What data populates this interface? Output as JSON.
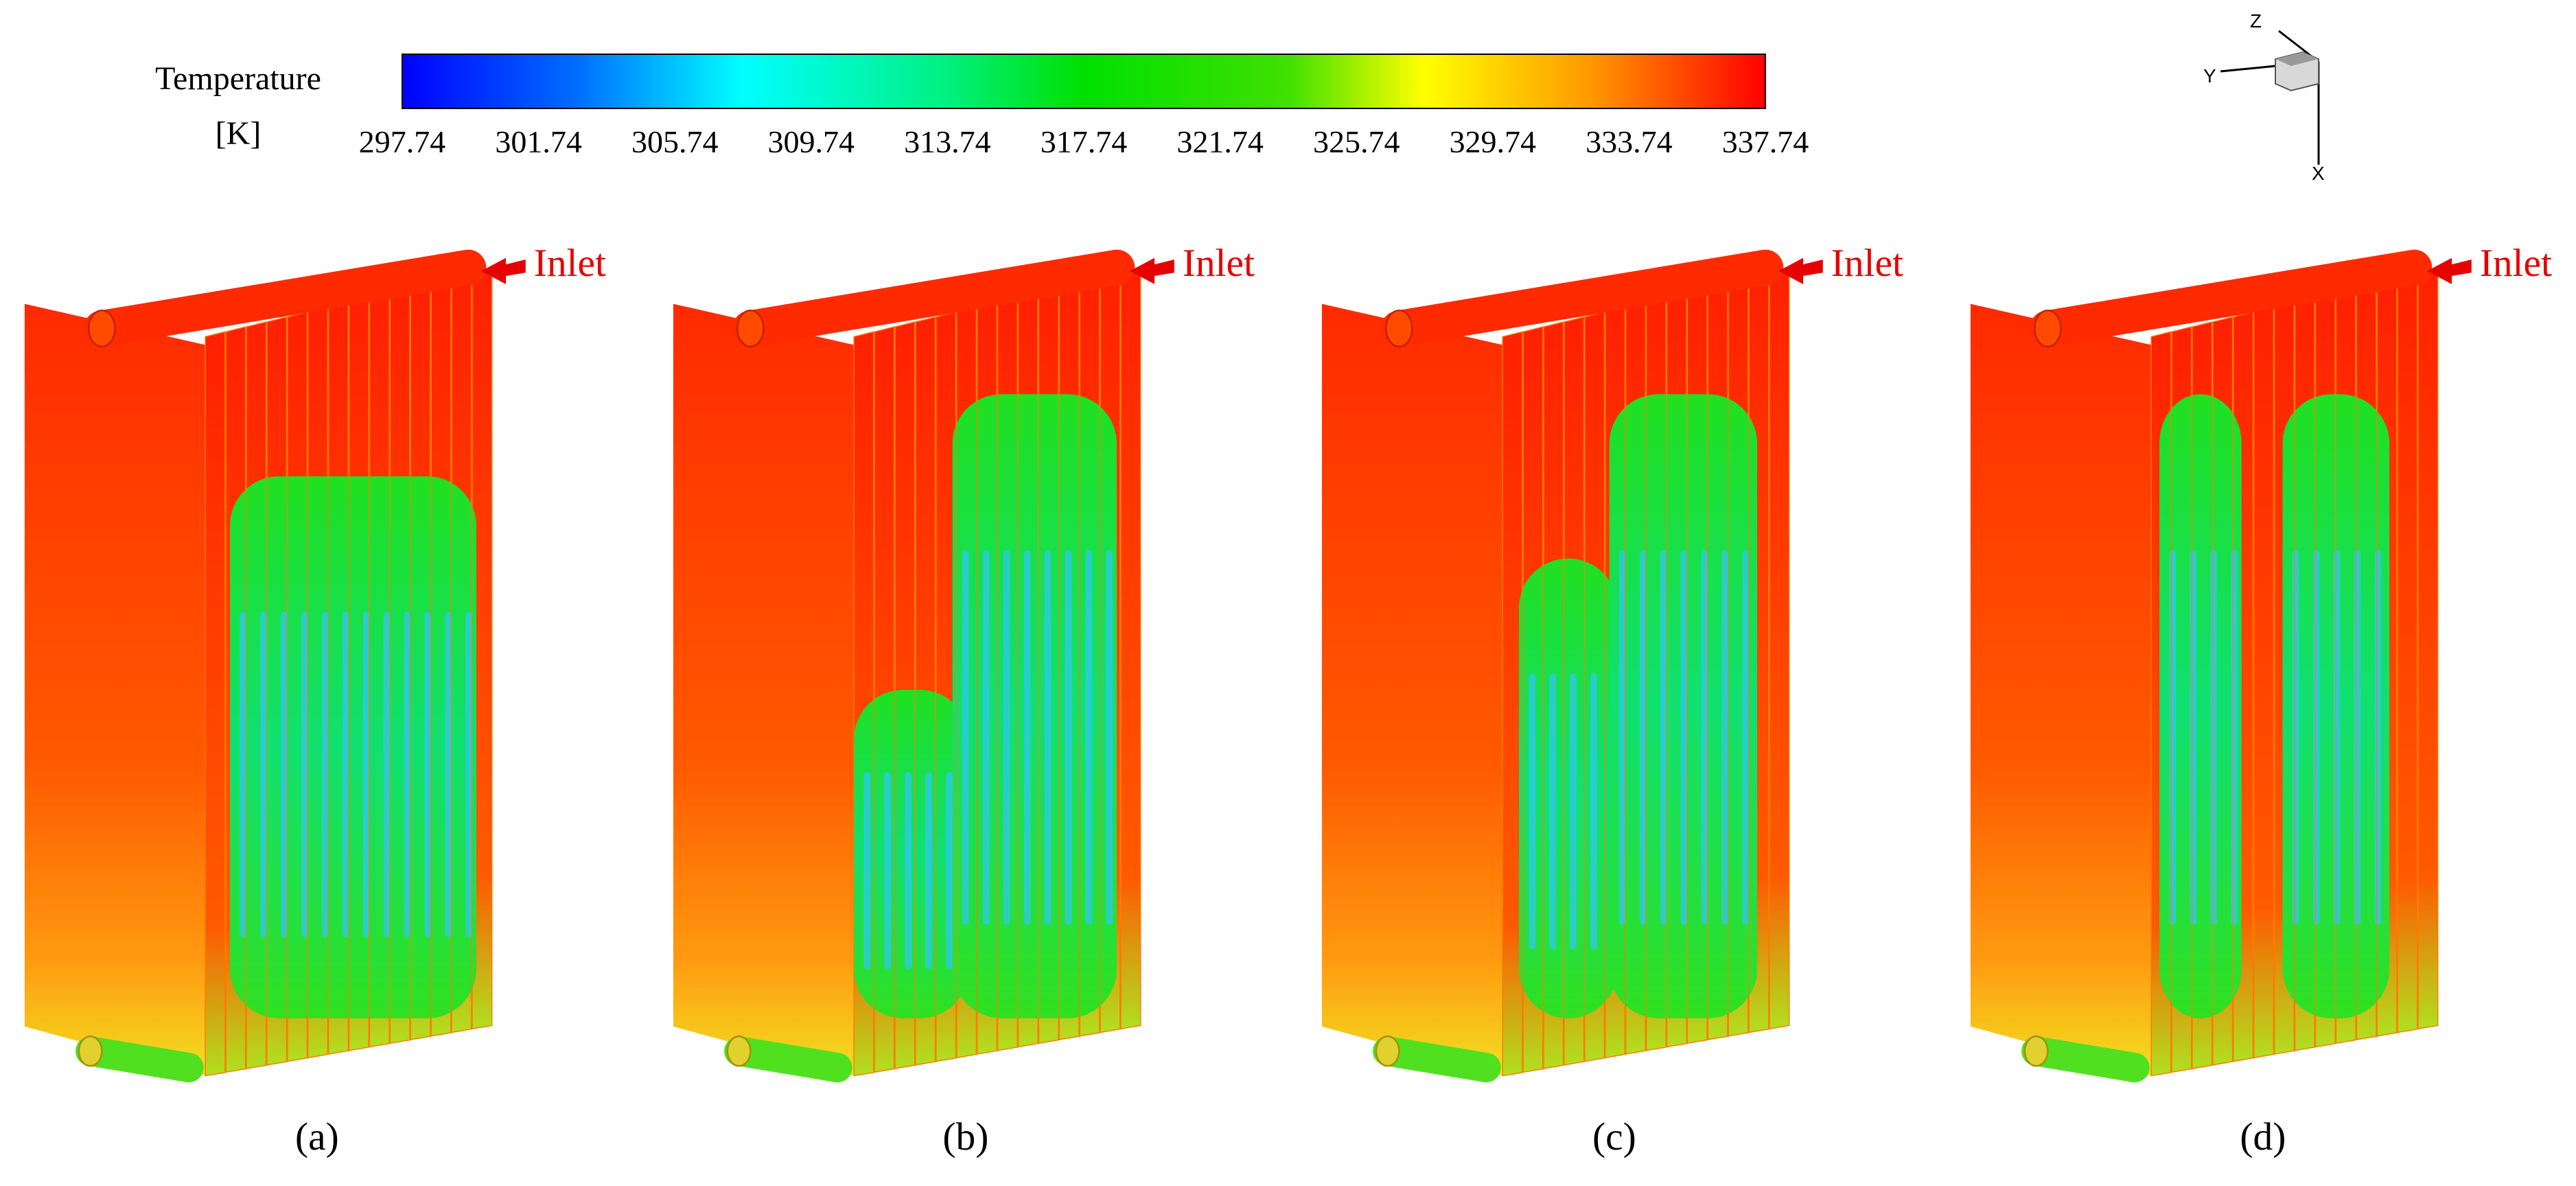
{
  "colorbar": {
    "title": "Temperature",
    "unit": "[K]",
    "ticks": [
      297.74,
      301.74,
      305.74,
      309.74,
      313.74,
      317.74,
      321.74,
      325.74,
      329.74,
      333.74,
      337.74
    ]
  },
  "axes_triad": {
    "z": "Z",
    "y": "Y",
    "x": "X"
  },
  "panels": [
    {
      "label": "(a)",
      "inlet": "Inlet"
    },
    {
      "label": "(b)",
      "inlet": "Inlet"
    },
    {
      "label": "(c)",
      "inlet": "Inlet"
    },
    {
      "label": "(d)",
      "inlet": "Inlet"
    }
  ]
}
